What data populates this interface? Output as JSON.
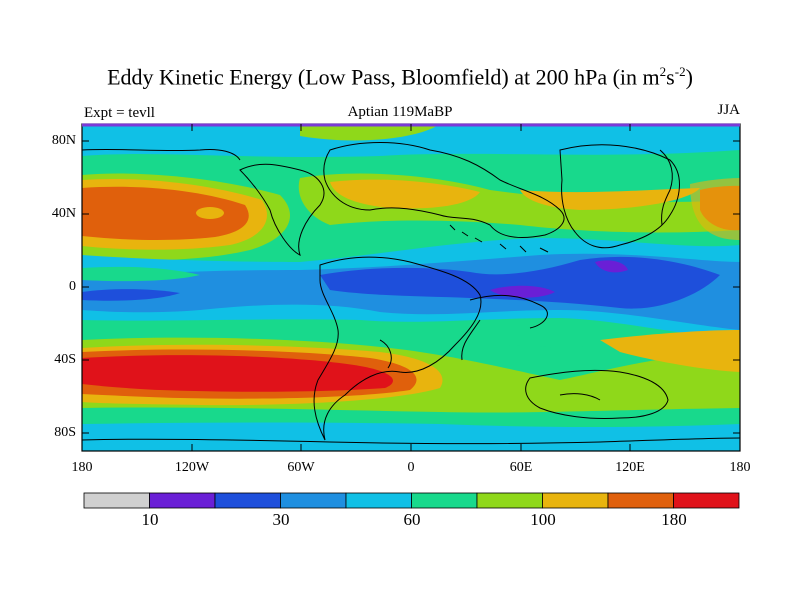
{
  "title_main": "Eddy Kinetic Energy (Low Pass, Bloomfield) at 200 hPa (in m",
  "title_exp1": "2",
  "title_mid": "s",
  "title_exp2": "-2",
  "title_end": ")",
  "subtitle": "Aptian   119MaBP",
  "left_label": "Expt = tevll",
  "right_label": "JJA",
  "y_ticks": [
    "80N",
    "40N",
    "0",
    "40S",
    "80S"
  ],
  "x_ticks": [
    "180",
    "120W",
    "60W",
    "0",
    "60E",
    "120E",
    "180"
  ],
  "colorbar": {
    "colors": [
      "#d0d0d0",
      "#6a1fd6",
      "#1e4fdb",
      "#1f8fe0",
      "#10c0e6",
      "#18d98c",
      "#8fd81a",
      "#e8b40e",
      "#e0600c",
      "#e0121a"
    ],
    "labels": [
      "10",
      "30",
      "60",
      "100",
      "180"
    ]
  },
  "map_colors": {
    "purple": "#6a1fd6",
    "dark_blue": "#1e4fdb",
    "blue": "#1f8fe0",
    "cyan": "#10c0e6",
    "green": "#18d98c",
    "yellowgreen": "#8fd81a",
    "gold": "#e8b40e",
    "orange": "#e0600c",
    "red": "#e0121a",
    "frame": "#7a3ad8"
  }
}
